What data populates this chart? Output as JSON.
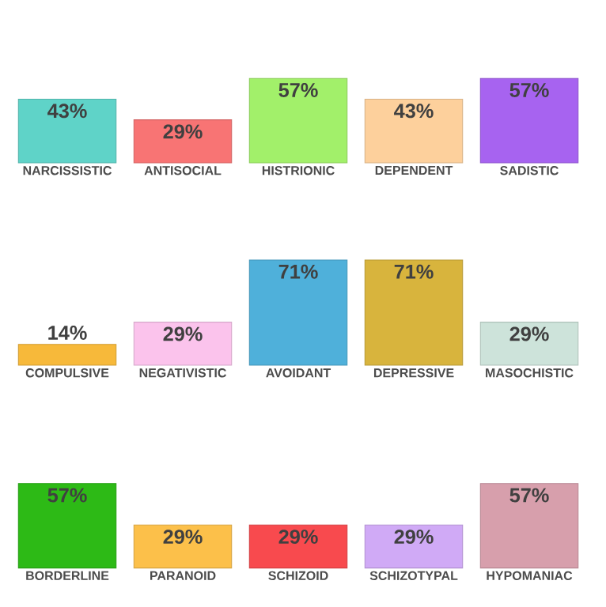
{
  "chart_data": [
    {
      "type": "bar",
      "categories": [
        "NARCISSISTIC",
        "ANTISOCIAL",
        "HISTRIONIC",
        "DEPENDENT",
        "SADISTIC"
      ],
      "values": [
        43,
        29,
        57,
        43,
        57
      ],
      "value_labels": [
        "43%",
        "29%",
        "57%",
        "43%",
        "57%"
      ],
      "colors": [
        "#5fd3c8",
        "#f87474",
        "#a2f06a",
        "#fdd09c",
        "#a763f0"
      ]
    },
    {
      "type": "bar",
      "categories": [
        "COMPULSIVE",
        "NEGATIVISTIC",
        "AVOIDANT",
        "DEPRESSIVE",
        "MASOCHISTIC"
      ],
      "values": [
        14,
        29,
        71,
        71,
        29
      ],
      "value_labels": [
        "14%",
        "29%",
        "71%",
        "71%",
        "29%"
      ],
      "colors": [
        "#f7b93a",
        "#fbc3ec",
        "#4fb0da",
        "#d8b43d",
        "#cde3da"
      ]
    },
    {
      "type": "bar",
      "categories": [
        "BORDERLINE",
        "PARANOID",
        "SCHIZOID",
        "SCHIZOTYPAL",
        "HYPOMANIAC"
      ],
      "values": [
        57,
        29,
        29,
        29,
        57
      ],
      "value_labels": [
        "57%",
        "29%",
        "29%",
        "29%",
        "57%"
      ],
      "colors": [
        "#2dba16",
        "#fcc04a",
        "#f84a4e",
        "#d0aaf6",
        "#d79fac"
      ]
    }
  ]
}
